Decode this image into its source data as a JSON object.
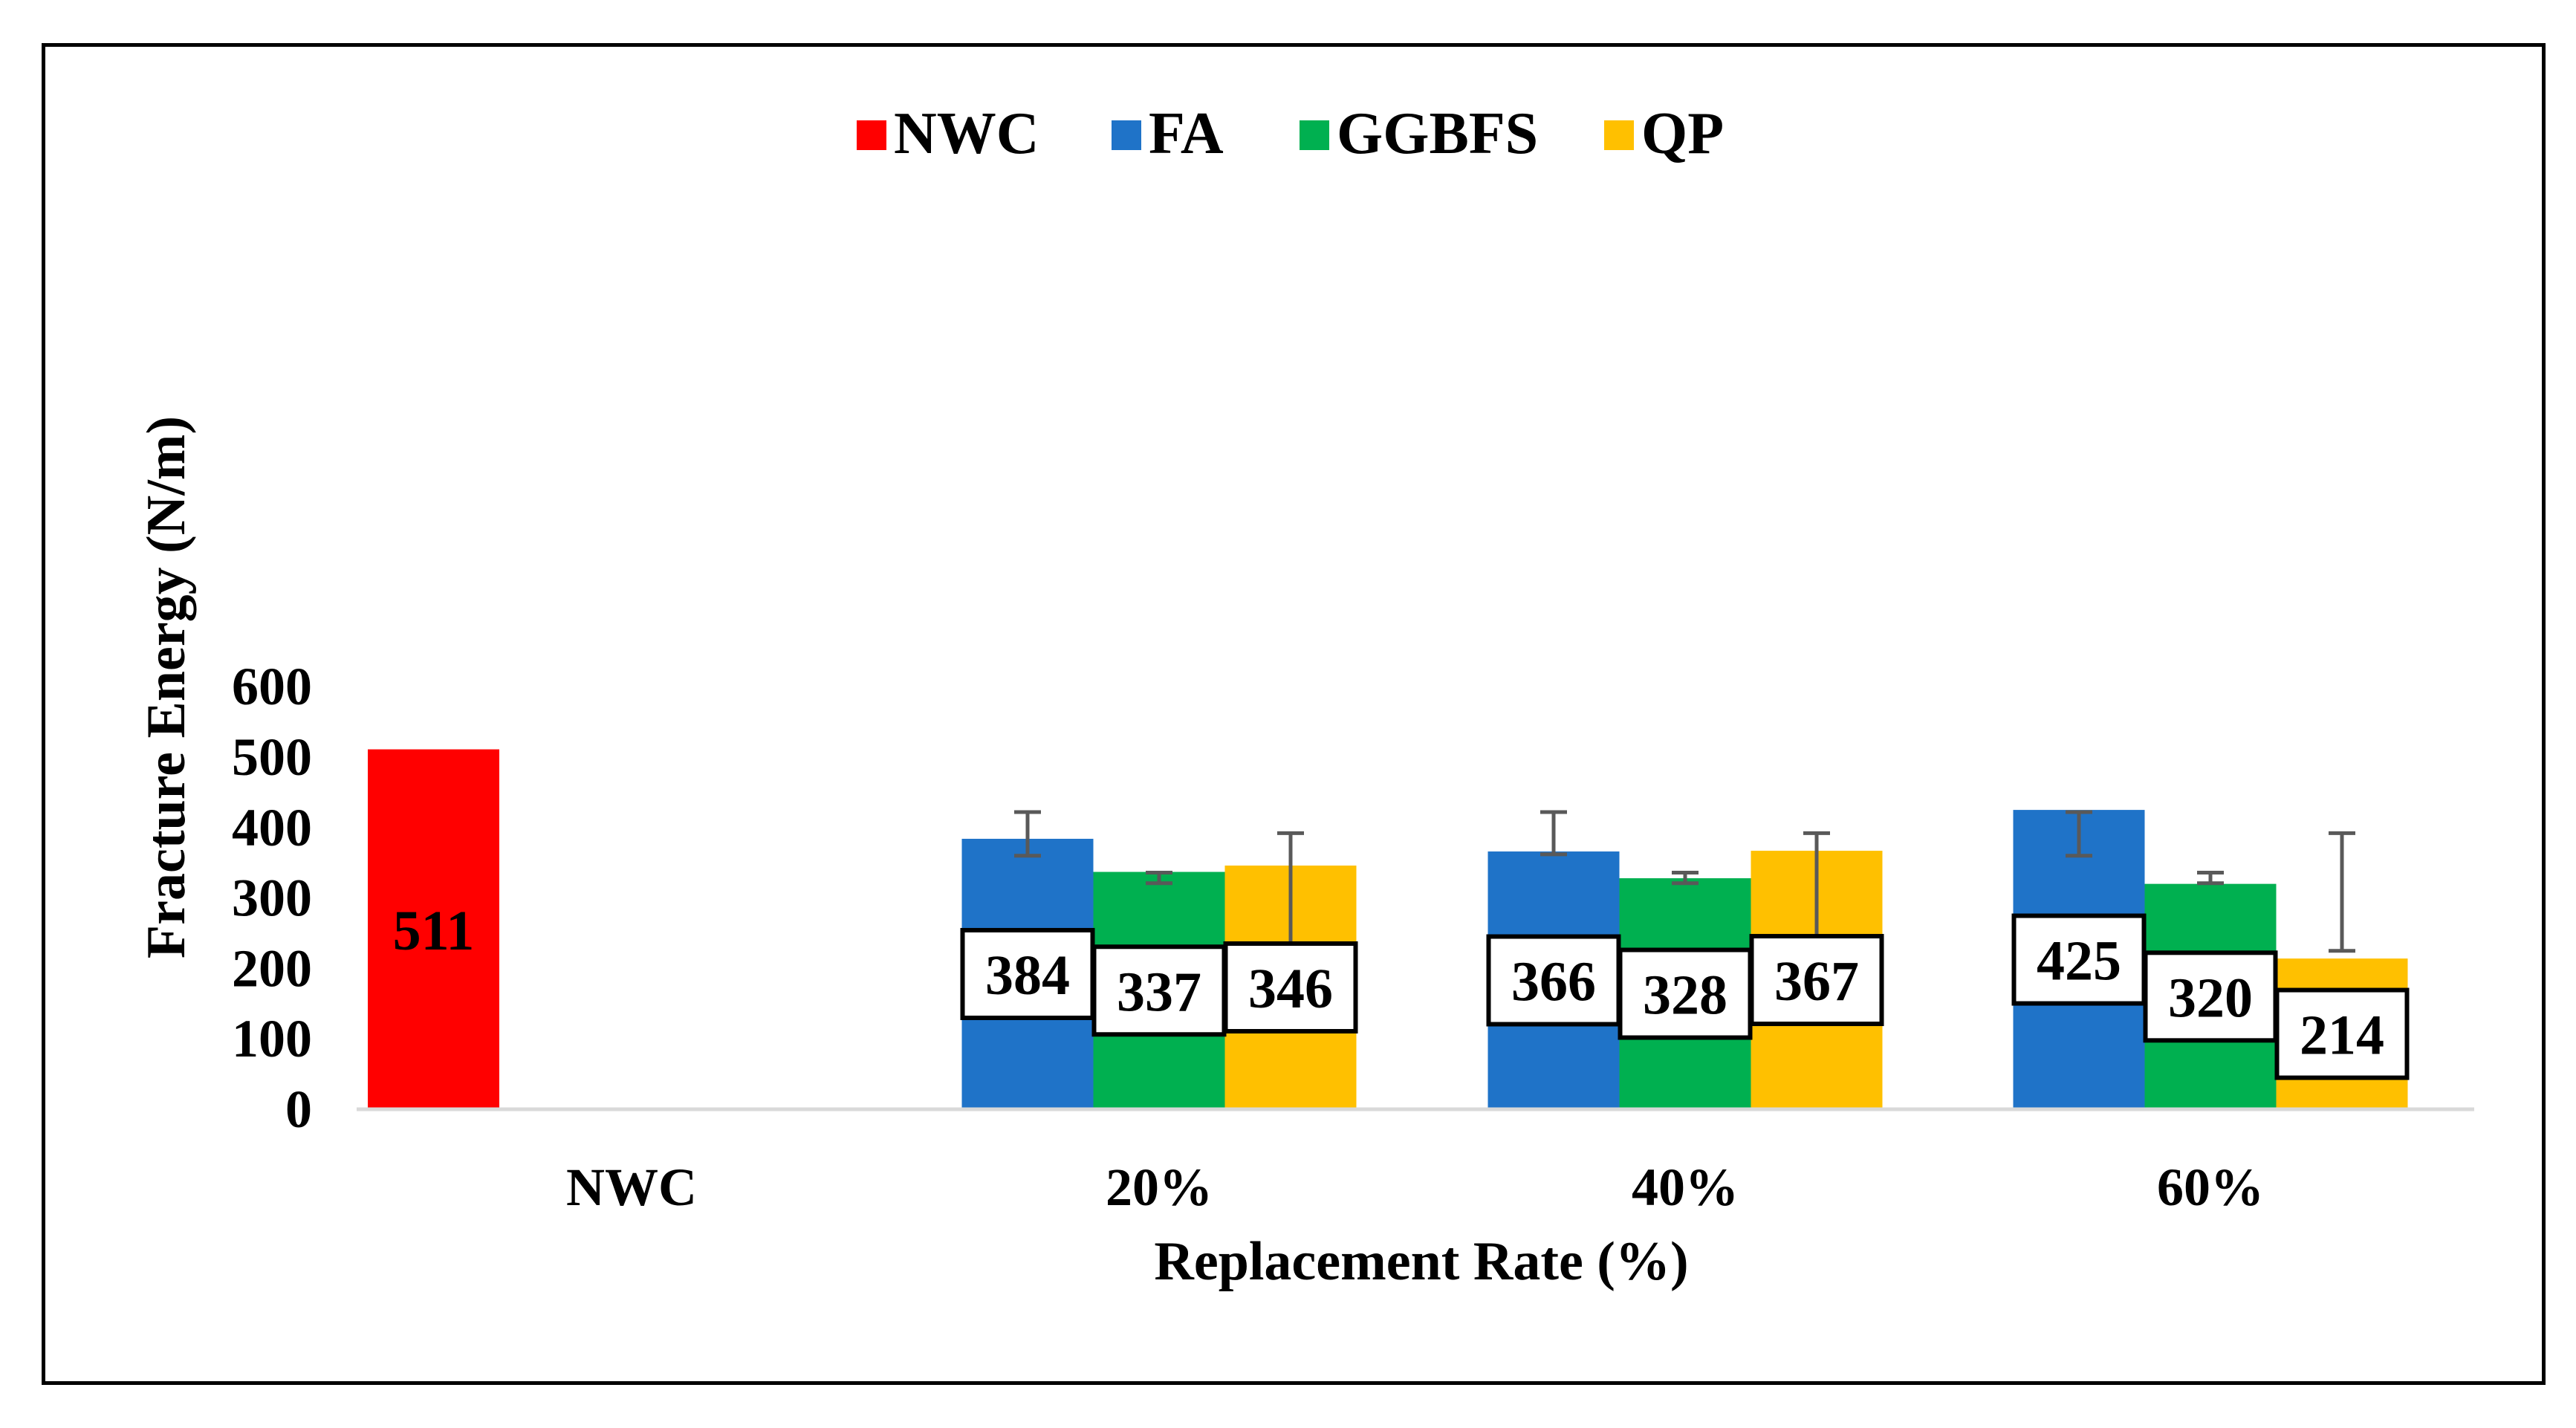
{
  "chart_data": {
    "type": "bar",
    "title": "",
    "xlabel": "Replacement Rate (%)",
    "ylabel": "Fracture Energy (N/m)",
    "ylim": [
      0,
      600
    ],
    "yticks": [
      0,
      100,
      200,
      300,
      400,
      500,
      600
    ],
    "categories": [
      "NWC",
      "20%",
      "40%",
      "60%"
    ],
    "legend_position": "top-center",
    "grid": false,
    "series": [
      {
        "name": "NWC",
        "color": "#ff0000",
        "values": [
          511,
          null,
          null,
          null
        ],
        "errors": [
          null,
          null,
          null,
          null
        ]
      },
      {
        "name": "FA",
        "color": "#1f73c8",
        "values": [
          null,
          384,
          366,
          425
        ],
        "errors": [
          null,
          [
            360,
            422
          ],
          [
            362,
            422
          ],
          [
            360,
            422
          ]
        ]
      },
      {
        "name": "GGBFS",
        "color": "#00b050",
        "values": [
          null,
          337,
          328,
          320
        ],
        "errors": [
          null,
          [
            321,
            336
          ],
          [
            321,
            336
          ],
          [
            321,
            336
          ]
        ]
      },
      {
        "name": "QP",
        "color": "#ffc000",
        "values": [
          null,
          346,
          367,
          214
        ],
        "errors": [
          null,
          [
            225,
            392
          ],
          [
            225,
            392
          ],
          [
            225,
            392
          ]
        ]
      }
    ],
    "data_labels": [
      {
        "series": "NWC",
        "category": "NWC",
        "text": "511"
      },
      {
        "series": "FA",
        "category": "20%",
        "text": "384"
      },
      {
        "series": "GGBFS",
        "category": "20%",
        "text": "337"
      },
      {
        "series": "QP",
        "category": "20%",
        "text": "346"
      },
      {
        "series": "FA",
        "category": "40%",
        "text": "366"
      },
      {
        "series": "GGBFS",
        "category": "40%",
        "text": "328"
      },
      {
        "series": "QP",
        "category": "40%",
        "text": "367"
      },
      {
        "series": "FA",
        "category": "60%",
        "text": "425"
      },
      {
        "series": "GGBFS",
        "category": "60%",
        "text": "320"
      },
      {
        "series": "QP",
        "category": "60%",
        "text": "214"
      }
    ]
  }
}
